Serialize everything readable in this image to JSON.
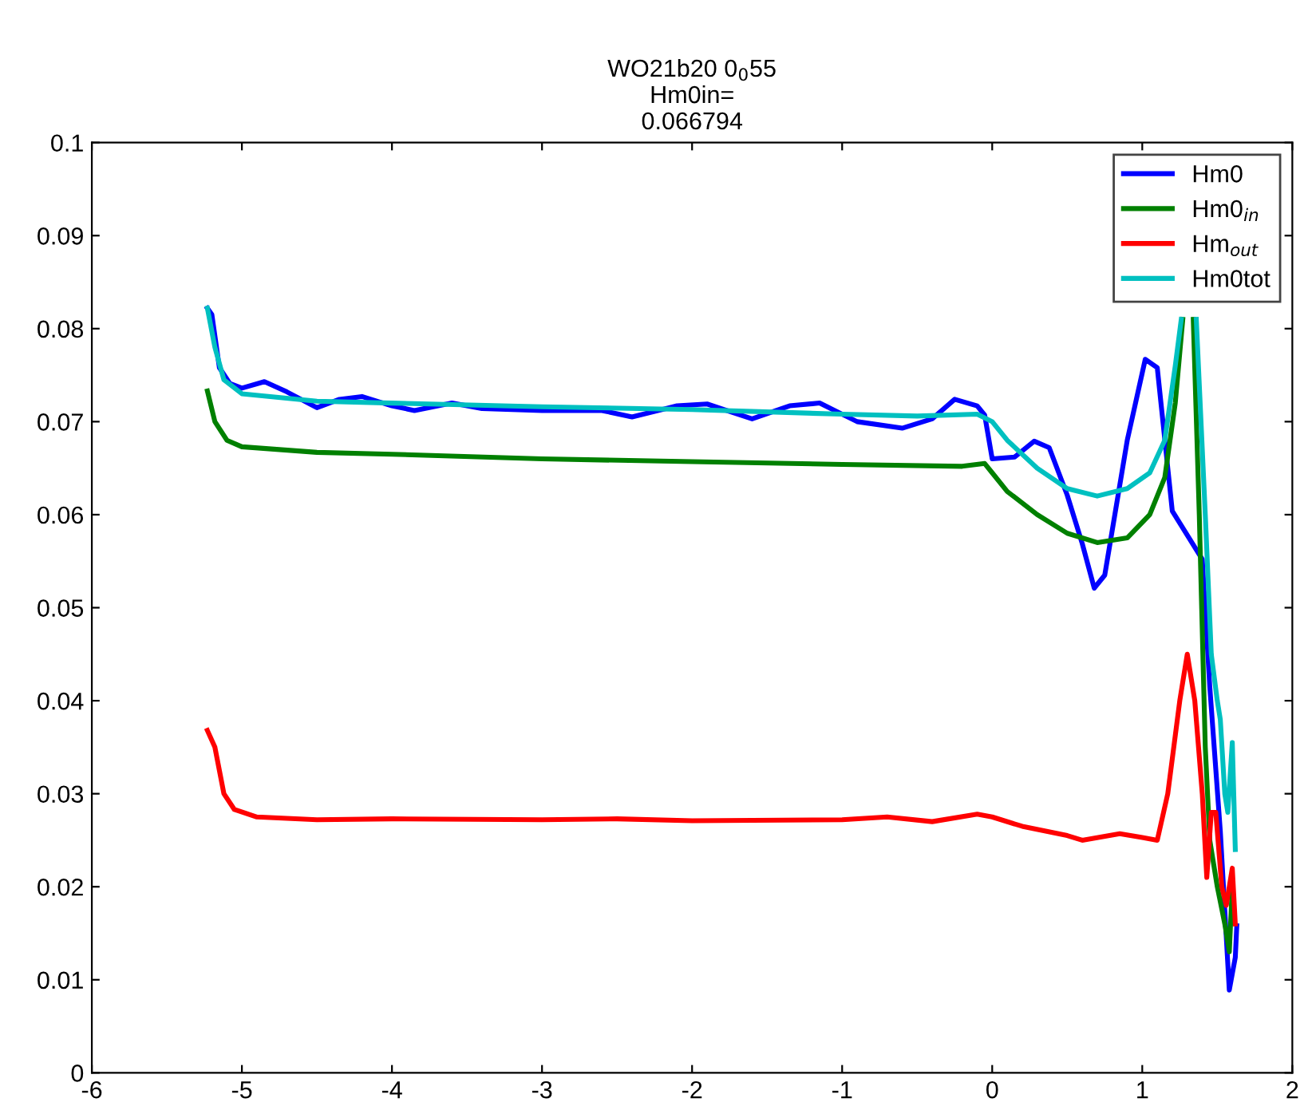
{
  "chart_data": {
    "type": "line",
    "title": "WO21b20 0$_{0}$55\nHm0in=\n0.066794",
    "xlim": [
      -6,
      2
    ],
    "xticks": [
      -6,
      -5,
      -4,
      -3,
      -2,
      -1,
      0,
      1,
      2
    ],
    "ylim": [
      0,
      0.1
    ],
    "yticks": [
      0,
      0.01,
      0.02,
      0.03,
      0.04,
      0.05,
      0.06,
      0.07,
      0.08,
      0.09,
      0.1
    ],
    "grid": false,
    "legend": "top right",
    "line_style": "solid",
    "marker": "none",
    "series": [
      {
        "name": "Hm0",
        "color": "#0000ff",
        "x": [
          -5.23,
          -5.2,
          -5.15,
          -5.08,
          -5.0,
          -4.85,
          -4.7,
          -4.5,
          -4.35,
          -4.2,
          -4.0,
          -3.85,
          -3.6,
          -3.4,
          -3.0,
          -2.6,
          -2.4,
          -2.1,
          -1.9,
          -1.6,
          -1.35,
          -1.15,
          -0.9,
          -0.6,
          -0.4,
          -0.25,
          -0.1,
          -0.05,
          0.0,
          0.15,
          0.28,
          0.38,
          0.5,
          0.6,
          0.68,
          0.75,
          0.9,
          1.02,
          1.1,
          1.2,
          1.3,
          1.4,
          1.45,
          1.52,
          1.58,
          1.62,
          1.63
        ],
        "values": [
          0.0822,
          0.0815,
          0.0758,
          0.0741,
          0.0736,
          0.0743,
          0.0732,
          0.0715,
          0.0724,
          0.0727,
          0.0717,
          0.0712,
          0.072,
          0.0714,
          0.0712,
          0.0712,
          0.0705,
          0.0717,
          0.0719,
          0.0703,
          0.0717,
          0.072,
          0.07,
          0.0693,
          0.0703,
          0.0724,
          0.0717,
          0.0707,
          0.066,
          0.0662,
          0.0679,
          0.0672,
          0.0621,
          0.0569,
          0.0521,
          0.0535,
          0.068,
          0.0767,
          0.0758,
          0.0604,
          0.0578,
          0.0552,
          0.0415,
          0.026,
          0.0089,
          0.0124,
          0.0158
        ]
      },
      {
        "name": "Hm0$_{in}$",
        "color": "#008000",
        "x": [
          -5.23,
          -5.18,
          -5.1,
          -5.0,
          -4.5,
          -4.0,
          -3.0,
          -2.0,
          -1.0,
          -0.2,
          -0.05,
          0.0,
          0.1,
          0.3,
          0.5,
          0.7,
          0.9,
          1.05,
          1.15,
          1.22,
          1.27,
          1.3,
          1.34,
          1.38,
          1.42,
          1.45,
          1.5,
          1.55,
          1.58,
          1.6
        ],
        "values": [
          0.0733,
          0.07,
          0.068,
          0.0673,
          0.0667,
          0.0665,
          0.066,
          0.0657,
          0.0654,
          0.0652,
          0.0655,
          0.0645,
          0.0625,
          0.06,
          0.058,
          0.057,
          0.0575,
          0.06,
          0.064,
          0.072,
          0.081,
          null,
          0.081,
          0.06,
          0.035,
          0.025,
          0.02,
          0.016,
          0.013,
          0.02
        ]
      },
      {
        "name": "Hm$_{out}$",
        "color": "#ff0000",
        "x": [
          -5.23,
          -5.18,
          -5.12,
          -5.05,
          -4.9,
          -4.5,
          -4.0,
          -3.0,
          -2.5,
          -2.0,
          -1.0,
          -0.7,
          -0.4,
          -0.1,
          0.0,
          0.2,
          0.5,
          0.6,
          0.85,
          1.0,
          1.1,
          1.17,
          1.25,
          1.3,
          1.35,
          1.4,
          1.43,
          1.46,
          1.49,
          1.53,
          1.56,
          1.6,
          1.62
        ],
        "values": [
          0.0368,
          0.035,
          0.03,
          0.0283,
          0.0275,
          0.0272,
          0.0273,
          0.0272,
          0.0273,
          0.0271,
          0.0272,
          0.0275,
          0.027,
          0.0278,
          0.0275,
          0.0265,
          0.0255,
          0.025,
          0.0257,
          0.0253,
          0.025,
          0.03,
          0.04,
          0.045,
          0.04,
          0.03,
          0.021,
          0.028,
          0.028,
          0.02,
          0.018,
          0.022,
          0.016
        ]
      },
      {
        "name": "Hm0tot",
        "color": "#00c0c0",
        "x": [
          -5.23,
          -5.18,
          -5.12,
          -5.0,
          -4.5,
          -4.0,
          -3.0,
          -2.0,
          -1.0,
          -0.5,
          -0.1,
          0.0,
          0.1,
          0.3,
          0.5,
          0.7,
          0.9,
          1.05,
          1.15,
          1.22,
          1.26,
          1.3,
          1.36,
          1.42,
          1.46,
          1.5,
          1.52,
          1.55,
          1.57,
          1.6,
          1.62
        ],
        "values": [
          0.0822,
          0.078,
          0.0745,
          0.073,
          0.0722,
          0.072,
          0.0716,
          0.0713,
          0.0708,
          0.0706,
          0.0708,
          0.07,
          0.068,
          0.065,
          0.0628,
          0.062,
          0.0628,
          0.0645,
          0.068,
          0.076,
          0.081,
          null,
          0.081,
          0.06,
          0.045,
          0.04,
          0.038,
          0.03,
          0.028,
          0.0355,
          0.024
        ]
      }
    ]
  }
}
